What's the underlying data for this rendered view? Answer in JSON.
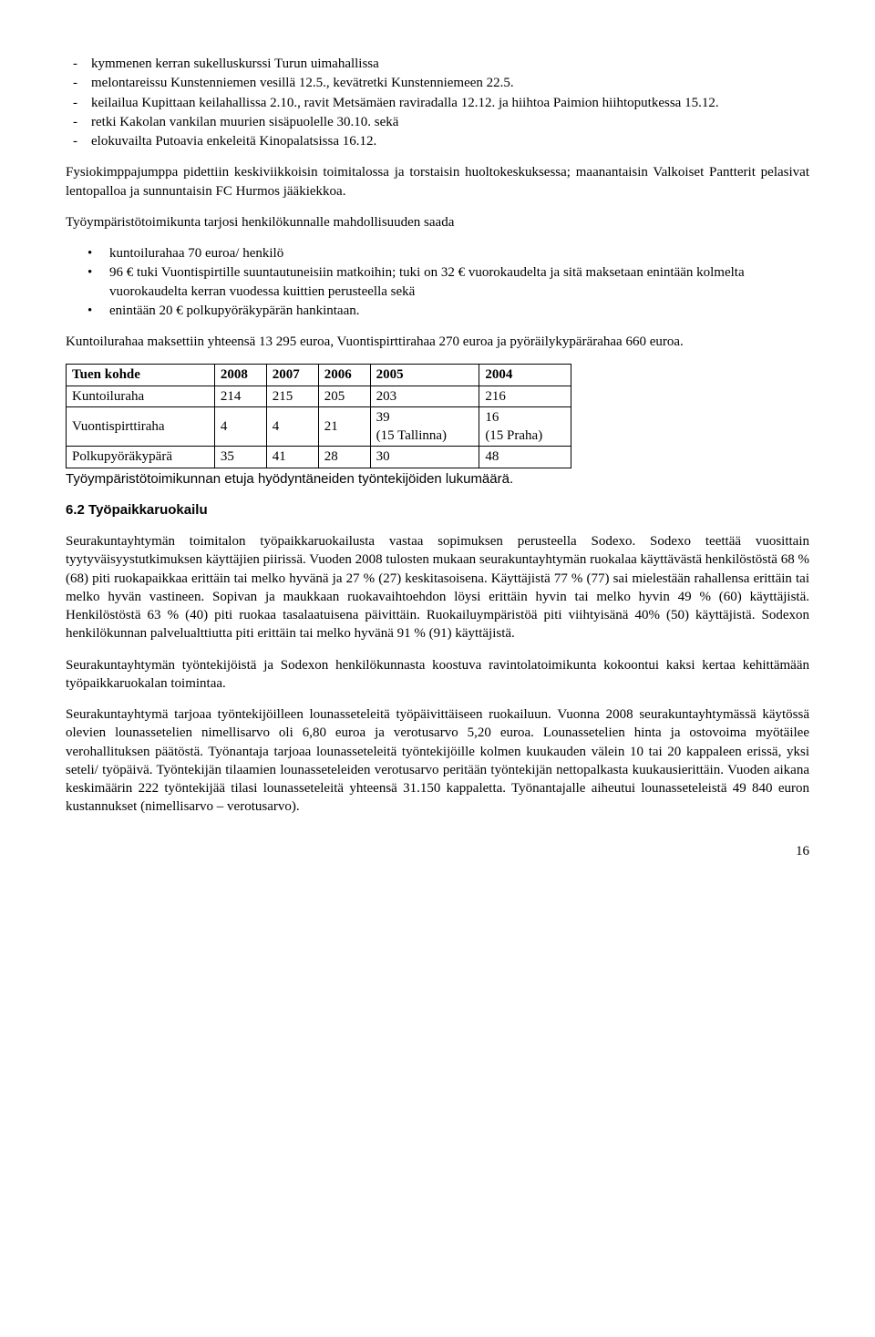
{
  "dashList": [
    "kymmenen kerran sukelluskurssi Turun uimahallissa",
    "melontareissu Kunstenniemen vesillä 12.5., kevätretki Kunstenniemeen 22.5.",
    "keilailua Kupittaan keilahallissa 2.10., ravit Metsämäen raviradalla 12.12. ja hiihtoa Paimion hiihtoputkessa 15.12.",
    "retki Kakolan vankilan muurien sisäpuolelle 30.10. sekä",
    "elokuvailta Putoavia enkeleitä Kinopalatsissa 16.12."
  ],
  "para1": "Fysiokimppajumppa pidettiin keskiviikkoisin toimitalossa ja torstaisin huoltokeskuksessa; maanantaisin Valkoiset Pantterit pelasivat lentopalloa ja sunnuntaisin FC Hurmos jääkiekkoa.",
  "para2": "Työympäristötoimikunta tarjosi henkilökunnalle mahdollisuuden saada",
  "bulletList": [
    "kuntoilurahaa 70 euroa/ henkilö",
    "96 € tuki Vuontispirtille suuntautuneisiin matkoihin; tuki on 32 € vuorokaudelta ja sitä maksetaan enintään kolmelta vuorokaudelta kerran vuodessa kuittien perusteella sekä",
    "enintään 20 € polkupyöräkypärän hankintaan."
  ],
  "para3": "Kuntoilurahaa maksettiin yhteensä 13 295 euroa, Vuontispirttirahaa 270 euroa ja pyöräilykypärärahaa 660 euroa.",
  "table": {
    "headers": [
      "Tuen kohde",
      "2008",
      "2007",
      "2006",
      "2005",
      "2004"
    ],
    "rows": [
      [
        "Kuntoiluraha",
        "214",
        "215",
        "205",
        "203",
        "216"
      ],
      [
        "Vuontispirttiraha",
        "4",
        "4",
        "21",
        "39\n(15 Tallinna)",
        "16\n(15 Praha)"
      ],
      [
        "Polkupyöräkypärä",
        "35",
        "41",
        "28",
        "30",
        "48"
      ]
    ],
    "header_bg": "#ffffff",
    "border_color": "#000000"
  },
  "tableCaption": "Työympäristötoimikunnan etuja hyödyntäneiden työntekijöiden lukumäärä.",
  "heading": "6.2   Työpaikkaruokailu",
  "para4": "Seurakuntayhtymän toimitalon työpaikkaruokailusta vastaa sopimuksen perusteella Sodexo. Sodexo teettää vuosittain tyytyväisyystutkimuksen käyttäjien piirissä. Vuoden 2008 tulosten mukaan seurakuntayhtymän ruokalaa käyttävästä henkilöstöstä 68 % (68) piti ruokapaikkaa erittäin tai melko hyvänä ja 27 % (27) keskitasoisena. Käyttäjistä 77 % (77) sai mielestään rahallensa erittäin tai melko hyvän vastineen. Sopivan ja maukkaan ruokavaihtoehdon löysi erittäin hyvin tai melko hyvin 49 % (60) käyttäjistä. Henkilöstöstä 63 % (40) piti ruokaa tasalaatuisena päivittäin. Ruokailuympäristöä piti viihtyisänä 40% (50) käyttäjistä. Sodexon henkilökunnan palvelualttiutta piti erittäin tai melko hyvänä 91 % (91) käyttäjistä.",
  "para5": "Seurakuntayhtymän työntekijöistä ja Sodexon henkilökunnasta koostuva ravintolatoimikunta kokoontui kaksi kertaa kehittämään työpaikkaruokalan toimintaa.",
  "para6": "Seurakuntayhtymä tarjoaa työntekijöilleen lounasseteleitä työpäivittäiseen ruokailuun. Vuonna 2008 seurakuntayhtymässä käytössä olevien lounassetelien nimellisarvo oli 6,80 euroa ja verotusarvo 5,20 euroa. Lounassetelien hinta ja ostovoima myötäilee verohallituksen päätöstä. Työnantaja tarjoaa lounasseteleitä työntekijöille kolmen kuukauden välein 10 tai 20 kappaleen erissä, yksi seteli/ työpäivä. Työntekijän tilaamien lounasseteleiden verotusarvo peritään työntekijän nettopalkasta kuukausierittäin. Vuoden aikana keskimäärin 222 työntekijää tilasi lounasseteleitä yhteensä 31.150 kappaletta. Työnantajalle aiheutui lounasseteleistä 49 840 euron kustannukset (nimellisarvo – verotusarvo).",
  "pageNumber": "16"
}
